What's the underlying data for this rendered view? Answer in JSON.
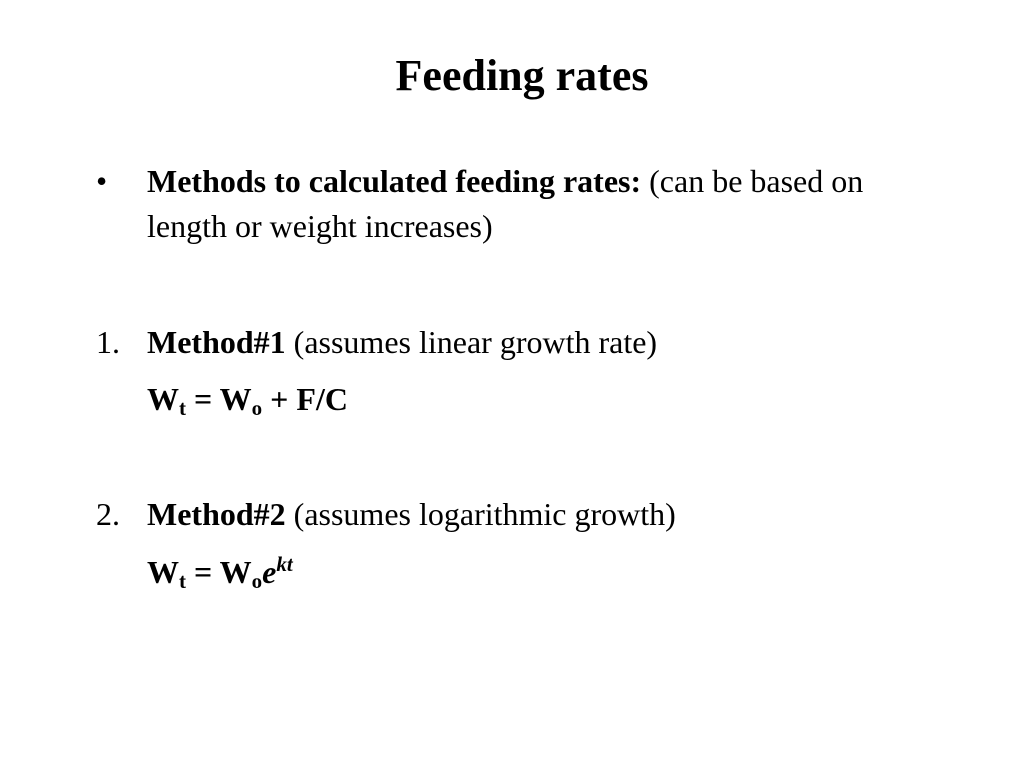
{
  "slide": {
    "title": "Feeding rates",
    "bullet": {
      "marker": "•",
      "bold_text": "Methods to calculated feeding rates:",
      "normal_text": " (can be based on length or weight increases)"
    },
    "methods": [
      {
        "number": "1.",
        "name": "Method#1",
        "note": " (assumes linear growth rate)",
        "equation": {
          "lhs_var": "W",
          "lhs_sub": "t",
          "equals": " = ",
          "rhs_var": "W",
          "rhs_sub": "o",
          "rhs_rest": " + F/C"
        }
      },
      {
        "number": "2.",
        "name": "Method#2",
        "note": " (assumes logarithmic growth)",
        "equation": {
          "lhs_var": "W",
          "lhs_sub": "t",
          "equals": " = ",
          "rhs_var": "W",
          "rhs_sub": "o",
          "base": "e",
          "exponent": "kt"
        }
      }
    ]
  }
}
